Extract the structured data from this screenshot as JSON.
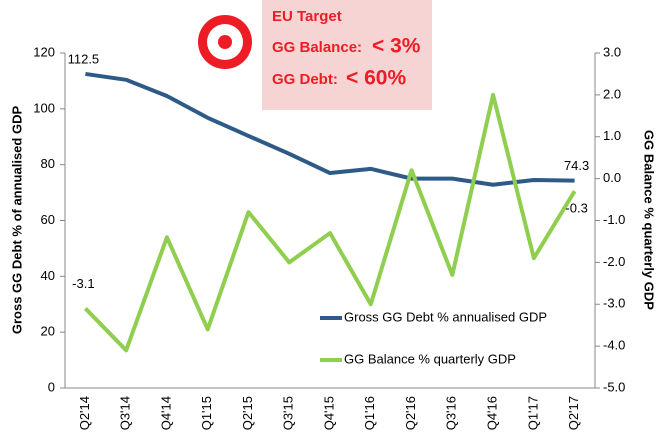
{
  "chart_data": {
    "type": "line",
    "categories": [
      "Q2'14",
      "Q3'14",
      "Q4'14",
      "Q1'15",
      "Q2'15",
      "Q3'15",
      "Q4'15",
      "Q1'16",
      "Q2'16",
      "Q3'16",
      "Q4'16",
      "Q1'17",
      "Q2'17"
    ],
    "series": [
      {
        "name": "Gross GG Debt % annualised GDP",
        "color": "#2e5a87",
        "axis": "y",
        "values": [
          112.5,
          110.4,
          104.6,
          96.8,
          90.3,
          83.9,
          77.0,
          78.5,
          75.0,
          75.0,
          72.8,
          74.5,
          74.3
        ],
        "value_labels": [
          "112.5",
          null,
          null,
          null,
          null,
          null,
          null,
          null,
          null,
          null,
          null,
          null,
          "74.3"
        ]
      },
      {
        "name": "GG Balance % quarterly GDP",
        "color": "#8fce4f",
        "axis": "y2",
        "values": [
          -3.1,
          -4.1,
          -1.4,
          -3.6,
          -0.8,
          -2.0,
          -1.3,
          -3.0,
          0.2,
          -2.3,
          2.0,
          -1.9,
          -0.3
        ],
        "value_labels": [
          "-3.1",
          null,
          null,
          null,
          null,
          null,
          null,
          null,
          null,
          null,
          null,
          null,
          "-0.3"
        ]
      }
    ],
    "ylabel": "Gross GG Debt % of annualised GDP",
    "y2label": "GG Balance % quarterly GDP",
    "ylim": [
      0,
      120
    ],
    "yticks": [
      0,
      20,
      40,
      60,
      80,
      100,
      120
    ],
    "y2lim": [
      -5,
      3
    ],
    "y2ticks": [
      {
        "value": 3,
        "label": "3.0"
      },
      {
        "value": 2,
        "label": "2.0"
      },
      {
        "value": 1,
        "label": "1.0"
      },
      {
        "value": 0,
        "label": "0.0"
      },
      {
        "value": -1,
        "label": "-1.0"
      },
      {
        "value": -2,
        "label": "-2.0"
      },
      {
        "value": -3,
        "label": "-3.0"
      },
      {
        "value": -4,
        "label": "-4.0"
      },
      {
        "value": -5,
        "label": "-5.0"
      }
    ],
    "grid": false,
    "annotation": {
      "title": "EU Target",
      "lines": [
        {
          "label": "GG Balance:",
          "value": "< 3%"
        },
        {
          "label": "GG Debt:",
          "value": "< 60%"
        }
      ]
    }
  }
}
